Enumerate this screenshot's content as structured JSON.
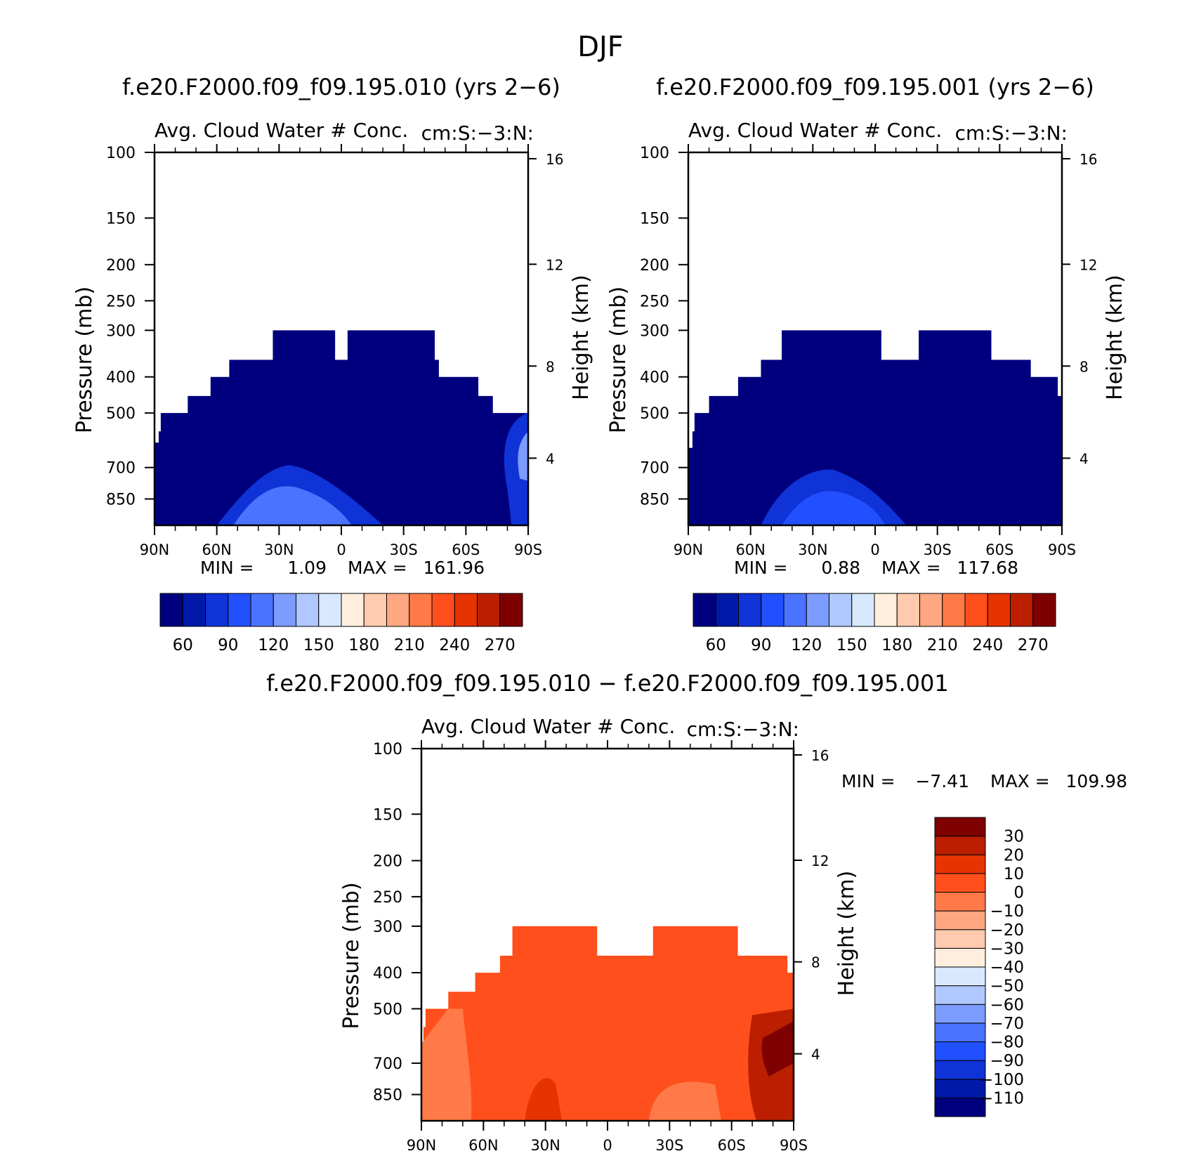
{
  "figure": {
    "title": "DJF"
  },
  "colors": {
    "panel_scale": [
      "#00007f",
      "#0019a8",
      "#0f33d6",
      "#2150ff",
      "#4a73ff",
      "#7c9cff",
      "#b0c8ff",
      "#d7e8ff",
      "#ffeedd",
      "#ffcaae",
      "#ffa780",
      "#ff7a48",
      "#ff4f1c",
      "#e63300",
      "#bb1f00",
      "#7f0000"
    ],
    "diff_scale": [
      "#00007f",
      "#0019a8",
      "#0f33d6",
      "#2150ff",
      "#4a73ff",
      "#7c9cff",
      "#b0c8ff",
      "#d7e8ff",
      "#ffeedd",
      "#ffcaae",
      "#ffa780",
      "#ff7a48",
      "#ff4f1c",
      "#e63300",
      "#bb1f00",
      "#7f0000"
    ]
  },
  "chart_data": [
    {
      "type": "heatmap",
      "title": "f.e20.F2000.f09_f09.195.010 (yrs 2−6)",
      "subtitle_left": "Avg. Cloud Water # Conc.",
      "subtitle_right": "cm:S:−3:N:",
      "xlabel": "",
      "ylabel": "Pressure (mb)",
      "y2label": "Height (km)",
      "x_ticks": [
        "90N",
        "60N",
        "30N",
        "0",
        "30S",
        "60S",
        "90S"
      ],
      "y_ticks": [
        "100",
        "150",
        "200",
        "250",
        "300",
        "400",
        "500",
        "700",
        "850"
      ],
      "y2_ticks": [
        "16",
        "12",
        "8",
        "4"
      ],
      "ylog": true,
      "ylim": [
        1000,
        100
      ],
      "min_label": "MIN =",
      "min_value": "1.09",
      "max_label": "MAX =",
      "max_value": "161.96",
      "colorbar_labels": [
        "60",
        "90",
        "120",
        "150",
        "180",
        "210",
        "240",
        "270"
      ],
      "field_envelope": {
        "lat": [
          90,
          88,
          87,
          74,
          63,
          55,
          54,
          49,
          33,
          10,
          3,
          -3,
          -36,
          -45,
          -47,
          -64,
          -66,
          -71,
          -73,
          -77,
          -79,
          -90
        ],
        "top_pressure_mb": [
          600,
          560,
          500,
          450,
          400,
          400,
          360,
          360,
          300,
          300,
          360,
          300,
          300,
          360,
          400,
          400,
          450,
          450,
          500,
          500,
          500,
          500
        ]
      },
      "features": [
        {
          "where": "lat 60N–20S, 650–900 mb",
          "approx_value": "60–120"
        },
        {
          "where": "lat 75S–90S, 500–900 mb",
          "approx_value": "60–150"
        }
      ]
    },
    {
      "type": "heatmap",
      "title": "f.e20.F2000.f09_f09.195.001 (yrs 2−6)",
      "subtitle_left": "Avg. Cloud Water # Conc.",
      "subtitle_right": "cm:S:−3:N:",
      "xlabel": "",
      "ylabel": "Pressure (mb)",
      "y2label": "Height (km)",
      "x_ticks": [
        "90N",
        "60N",
        "30N",
        "0",
        "30S",
        "60S",
        "90S"
      ],
      "y_ticks": [
        "100",
        "150",
        "200",
        "250",
        "300",
        "400",
        "500",
        "700",
        "850"
      ],
      "y2_ticks": [
        "16",
        "12",
        "8",
        "4"
      ],
      "ylog": true,
      "ylim": [
        1000,
        100
      ],
      "min_label": "MIN =",
      "min_value": "0.88",
      "max_label": "MAX =",
      "max_value": "117.68",
      "colorbar_labels": [
        "60",
        "90",
        "120",
        "150",
        "180",
        "210",
        "240",
        "270"
      ],
      "field_envelope": {
        "lat": [
          90,
          88,
          87,
          80,
          66,
          55,
          45,
          35,
          -1,
          -3,
          -21,
          -42,
          -56,
          -75,
          -88,
          -90
        ],
        "top_pressure_mb": [
          620,
          560,
          500,
          450,
          400,
          360,
          300,
          300,
          300,
          360,
          300,
          300,
          360,
          400,
          450,
          500
        ]
      },
      "features": [
        {
          "where": "lat 50N–10S, 700–900 mb",
          "approx_value": "60–120"
        }
      ]
    },
    {
      "type": "heatmap",
      "title": "f.e20.F2000.f09_f09.195.010 − f.e20.F2000.f09_f09.195.001",
      "subtitle_left": "Avg. Cloud Water # Conc.",
      "subtitle_right": "cm:S:−3:N:",
      "xlabel": "",
      "ylabel": "Pressure (mb)",
      "y2label": "Height (km)",
      "x_ticks": [
        "90N",
        "60N",
        "30N",
        "0",
        "30S",
        "60S",
        "90S"
      ],
      "y_ticks": [
        "100",
        "150",
        "200",
        "250",
        "300",
        "400",
        "500",
        "700",
        "850"
      ],
      "y2_ticks": [
        "16",
        "12",
        "8",
        "4"
      ],
      "ylog": true,
      "ylim": [
        1000,
        100
      ],
      "min_label": "MIN =",
      "min_value": "−7.41",
      "max_label": "MAX =",
      "max_value": "109.98",
      "colorbar_labels": [
        "30",
        "20",
        "10",
        "0",
        "−10",
        "−20",
        "−30",
        "−40",
        "−50",
        "−60",
        "−70",
        "−80",
        "−90",
        "−100",
        "−110"
      ],
      "field_envelope": {
        "lat": [
          90,
          89,
          88,
          77,
          64,
          52,
          46,
          17,
          5,
          -2,
          -22,
          -52,
          -63,
          -87,
          -90
        ],
        "top_pressure_mb": [
          620,
          560,
          500,
          450,
          400,
          360,
          300,
          300,
          360,
          360,
          300,
          300,
          360,
          400,
          500
        ]
      },
      "features": [
        {
          "where": "most of domain",
          "approx_value": "0 to 10"
        },
        {
          "where": "lat 90N–75N and 20S–50S low levels",
          "approx_value": "−10 to 0"
        },
        {
          "where": "lat 75S–90S, 450–900 mb",
          "approx_value": "20 to 30+"
        }
      ]
    }
  ]
}
